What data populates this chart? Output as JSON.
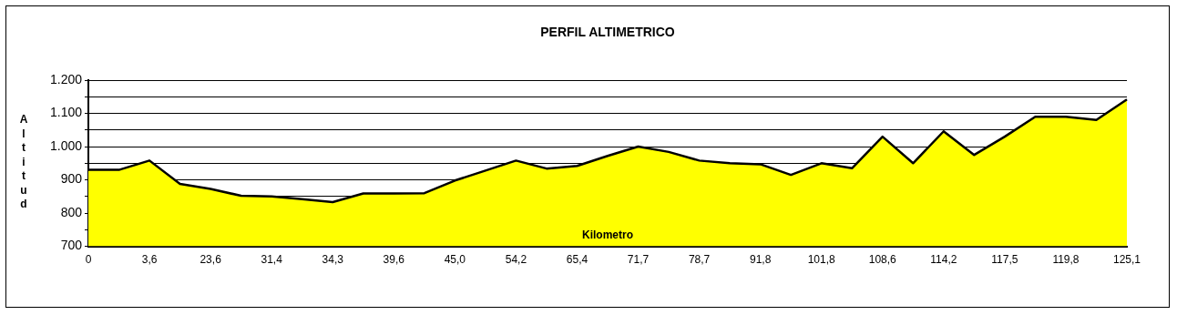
{
  "chart_data": {
    "type": "area",
    "title": "PERFIL ALTIMETRICO",
    "xlabel": "Kilometro",
    "ylabel": "Altitud",
    "categories": [
      "0",
      null,
      "3,6",
      null,
      "23,6",
      null,
      "31,4",
      null,
      "34,3",
      null,
      "39,6",
      null,
      "45,0",
      null,
      "54,2",
      null,
      "65,4",
      null,
      "71,7",
      null,
      "78,7",
      null,
      "91,8",
      null,
      "101,8",
      null,
      "108,6",
      null,
      "114,2",
      null,
      "117,5",
      null,
      "119,8",
      null,
      "125,1"
    ],
    "series": [
      {
        "color": "#ffff00",
        "values": [
          930,
          930,
          958,
          888,
          873,
          852,
          850,
          842,
          833,
          859,
          859,
          860,
          898,
          928,
          958,
          934,
          942,
          972,
          1000,
          984,
          958,
          950,
          947,
          915,
          950,
          935,
          1030,
          950,
          1046,
          975,
          1030,
          1090,
          1090,
          1080,
          1142
        ]
      }
    ],
    "ylim": [
      700,
      1200
    ],
    "yticks": [
      {
        "value": 700,
        "label": "700"
      },
      {
        "value": 750,
        "label": null
      },
      {
        "value": 800,
        "label": "800"
      },
      {
        "value": 850,
        "label": null
      },
      {
        "value": 900,
        "label": "900"
      },
      {
        "value": 950,
        "label": null
      },
      {
        "value": 1000,
        "label": "1.000"
      },
      {
        "value": 1050,
        "label": null
      },
      {
        "value": 1100,
        "label": "1.100"
      },
      {
        "value": 1150,
        "label": null
      },
      {
        "value": 1200,
        "label": "1.200"
      }
    ],
    "grid": "y",
    "legend": false,
    "marker": "none"
  }
}
